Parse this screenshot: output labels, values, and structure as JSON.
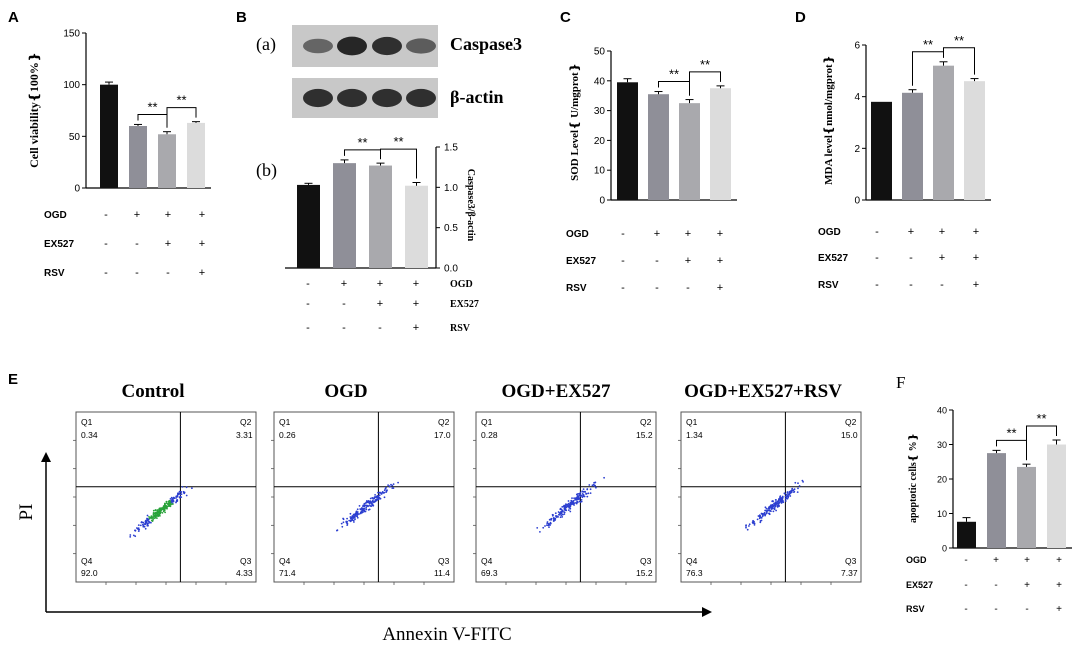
{
  "panel_letters": {
    "A": "A",
    "B": "B",
    "C": "C",
    "D": "D",
    "E": "E",
    "F": "F"
  },
  "sig_marker": "**",
  "colors": {
    "ctrl": "#111111",
    "ogd": "#8f8f98",
    "ex527": "#a9a9ad",
    "rsv": "#dcdcdc",
    "blot_band": "#333333"
  },
  "western_blot": {
    "sub_a": "(a)",
    "sub_b": "(b)",
    "rows": [
      {
        "label": "Caspase3",
        "intensities": [
          0.55,
          0.9,
          0.85,
          0.6
        ]
      },
      {
        "label": "β-actin",
        "intensities": [
          0.85,
          0.85,
          0.85,
          0.85
        ]
      }
    ]
  },
  "flow_cytometry": {
    "xlabel": "Annexin V-FITC",
    "ylabel": "PI",
    "plots": [
      {
        "title": "Control",
        "q1_label": "Q1",
        "q1": "0.34",
        "q2_label": "Q2",
        "q2": "3.31",
        "q3_label": "Q3",
        "q3": "4.33",
        "q4_label": "Q4",
        "q4": "92.0"
      },
      {
        "title": "OGD",
        "q1_label": "Q1",
        "q1": "0.26",
        "q2_label": "Q2",
        "q2": "17.0",
        "q3_label": "Q3",
        "q3": "11.4",
        "q4_label": "Q4",
        "q4": "71.4"
      },
      {
        "title": "OGD+EX527",
        "q1_label": "Q1",
        "q1": "0.28",
        "q2_label": "Q2",
        "q2": "15.2",
        "q3_label": "Q3",
        "q3": "15.2",
        "q4_label": "Q4",
        "q4": "69.3"
      },
      {
        "title": "OGD+EX527+RSV",
        "q1_label": "Q1",
        "q1": "1.34",
        "q2_label": "Q2",
        "q2": "15.0",
        "q3_label": "Q3",
        "q3": "7.37",
        "q4_label": "Q4",
        "q4": "76.3"
      }
    ]
  },
  "chart_data": [
    {
      "id": "A",
      "type": "bar",
      "title": "",
      "xlabel": "",
      "ylabel": "Cell viability❴100%❵",
      "ylim": [
        0,
        150
      ],
      "yticks": [
        "0",
        "50",
        "100",
        "150"
      ],
      "values": [
        100,
        60,
        52,
        63
      ],
      "errors": [
        2.5,
        1.5,
        2.5,
        1.2
      ],
      "sig": [
        {
          "from": 2,
          "to": 1
        },
        {
          "from": 3,
          "to": 2
        }
      ],
      "conditions": [
        {
          "name": "OGD",
          "marks": [
            "-",
            "+",
            "+",
            "+"
          ]
        },
        {
          "name": "EX527",
          "marks": [
            "-",
            "-",
            "+",
            "+"
          ]
        },
        {
          "name": "RSV",
          "marks": [
            "-",
            "-",
            "-",
            "+"
          ]
        }
      ]
    },
    {
      "id": "B",
      "type": "bar",
      "title": "",
      "xlabel": "",
      "ylabel": "Caspase3/β-actin",
      "ylim": [
        0,
        1.5
      ],
      "yticks": [
        "0.0",
        "0.5",
        "1.0",
        "1.5"
      ],
      "values": [
        1.03,
        1.3,
        1.27,
        1.02
      ],
      "errors": [
        0.02,
        0.04,
        0.03,
        0.04
      ],
      "sig": [
        {
          "from": 1,
          "to": 2
        },
        {
          "from": 2,
          "to": 3
        }
      ],
      "conditions": [
        {
          "name": "OGD",
          "marks": [
            "-",
            "+",
            "+",
            "+"
          ]
        },
        {
          "name": "EX527",
          "marks": [
            "-",
            "-",
            "+",
            "+"
          ]
        },
        {
          "name": "RSV",
          "marks": [
            "-",
            "-",
            "-",
            "+"
          ]
        }
      ]
    },
    {
      "id": "C",
      "type": "bar",
      "title": "",
      "xlabel": "",
      "ylabel": "SOD Level❴ U/mgprot❵",
      "ylim": [
        0,
        50
      ],
      "yticks": [
        "0",
        "10",
        "20",
        "30",
        "40",
        "50"
      ],
      "values": [
        39.5,
        35.5,
        32.5,
        37.5
      ],
      "errors": [
        1.2,
        0.9,
        1.2,
        0.8
      ],
      "sig": [
        {
          "from": 1,
          "to": 2
        },
        {
          "from": 2,
          "to": 3
        }
      ],
      "conditions": [
        {
          "name": "OGD",
          "marks": [
            "-",
            "+",
            "+",
            "+"
          ]
        },
        {
          "name": "EX527",
          "marks": [
            "-",
            "-",
            "+",
            "+"
          ]
        },
        {
          "name": "RSV",
          "marks": [
            "-",
            "-",
            "-",
            "+"
          ]
        }
      ]
    },
    {
      "id": "D",
      "type": "bar",
      "title": "",
      "xlabel": "",
      "ylabel": "MDA level❴nmol/mgprot❵",
      "ylim": [
        0,
        6
      ],
      "yticks": [
        "0",
        "2",
        "4",
        "6"
      ],
      "values": [
        3.8,
        4.15,
        5.2,
        4.6
      ],
      "errors": [
        0.0,
        0.12,
        0.15,
        0.1
      ],
      "sig": [
        {
          "from": 1,
          "to": 2
        },
        {
          "from": 2,
          "to": 3
        }
      ],
      "conditions": [
        {
          "name": "OGD",
          "marks": [
            "-",
            "+",
            "+",
            "+"
          ]
        },
        {
          "name": "EX527",
          "marks": [
            "-",
            "-",
            "+",
            "+"
          ]
        },
        {
          "name": "RSV",
          "marks": [
            "-",
            "-",
            "-",
            "+"
          ]
        }
      ]
    },
    {
      "id": "F",
      "type": "bar",
      "title": "",
      "xlabel": "",
      "ylabel": "apoptotic cells❴ %❵",
      "ylim": [
        0,
        40
      ],
      "yticks": [
        "0",
        "10",
        "20",
        "30",
        "40"
      ],
      "values": [
        7.6,
        27.5,
        23.5,
        30.0
      ],
      "errors": [
        1.2,
        0.8,
        0.8,
        1.3
      ],
      "sig": [
        {
          "from": 1,
          "to": 2
        },
        {
          "from": 2,
          "to": 3
        }
      ],
      "conditions": [
        {
          "name": "OGD",
          "marks": [
            "-",
            "+",
            "+",
            "+"
          ]
        },
        {
          "name": "EX527",
          "marks": [
            "-",
            "-",
            "+",
            "+"
          ]
        },
        {
          "name": "RSV",
          "marks": [
            "-",
            "-",
            "-",
            "+"
          ]
        }
      ]
    }
  ]
}
